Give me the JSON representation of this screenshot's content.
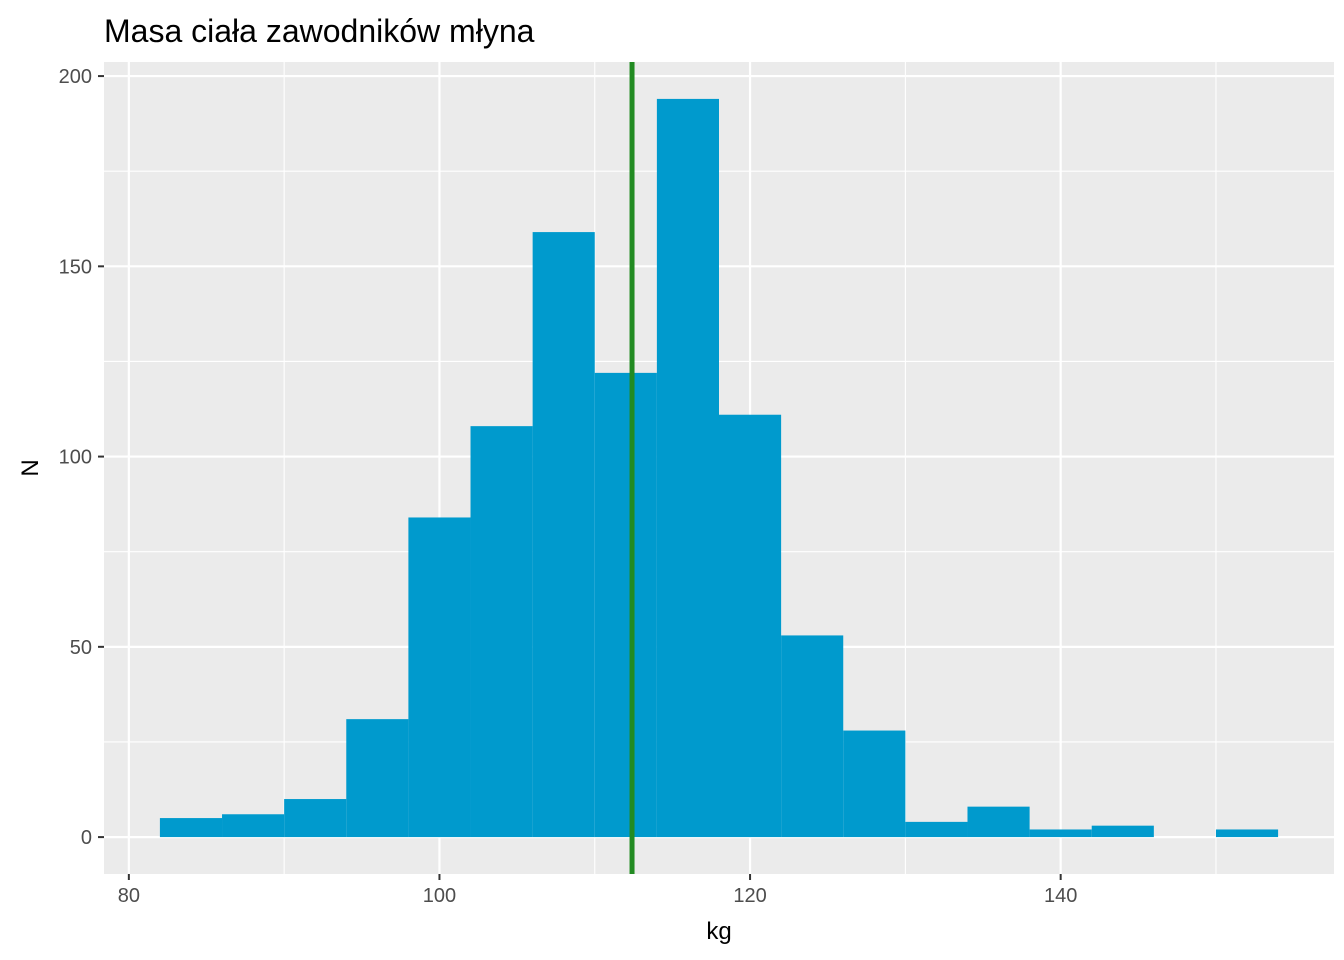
{
  "chart_data": {
    "type": "histogram",
    "title": "Masa ciała zawodników młyna",
    "xlabel": "kg",
    "ylabel": "N",
    "xlim": [
      78.4,
      157.6
    ],
    "ylim": [
      -9.7,
      203.7
    ],
    "x_ticks": [
      80,
      100,
      120,
      140
    ],
    "y_ticks": [
      0,
      50,
      100,
      150,
      200
    ],
    "x_minor_ticks": [
      90,
      110,
      130,
      150
    ],
    "y_minor_ticks": [
      25,
      75,
      125,
      175
    ],
    "bin_width": 4,
    "bins": [
      {
        "x0": 82,
        "x1": 86,
        "count": 5
      },
      {
        "x0": 86,
        "x1": 90,
        "count": 6
      },
      {
        "x0": 90,
        "x1": 94,
        "count": 10
      },
      {
        "x0": 94,
        "x1": 98,
        "count": 31
      },
      {
        "x0": 98,
        "x1": 102,
        "count": 84
      },
      {
        "x0": 102,
        "x1": 106,
        "count": 108
      },
      {
        "x0": 106,
        "x1": 110,
        "count": 159
      },
      {
        "x0": 110,
        "x1": 114,
        "count": 122
      },
      {
        "x0": 114,
        "x1": 118,
        "count": 194
      },
      {
        "x0": 118,
        "x1": 122,
        "count": 111
      },
      {
        "x0": 122,
        "x1": 126,
        "count": 53
      },
      {
        "x0": 126,
        "x1": 130,
        "count": 28
      },
      {
        "x0": 130,
        "x1": 134,
        "count": 4
      },
      {
        "x0": 134,
        "x1": 138,
        "count": 8
      },
      {
        "x0": 138,
        "x1": 142,
        "count": 2
      },
      {
        "x0": 142,
        "x1": 146,
        "count": 3
      },
      {
        "x0": 146,
        "x1": 150,
        "count": 0
      },
      {
        "x0": 150,
        "x1": 154,
        "count": 2
      }
    ],
    "vline_x": 112.4,
    "grid": true,
    "colors": {
      "bar": "#009ACD",
      "vline": "#228B22",
      "panel": "#EBEBEB",
      "grid": "#FFFFFF"
    }
  }
}
